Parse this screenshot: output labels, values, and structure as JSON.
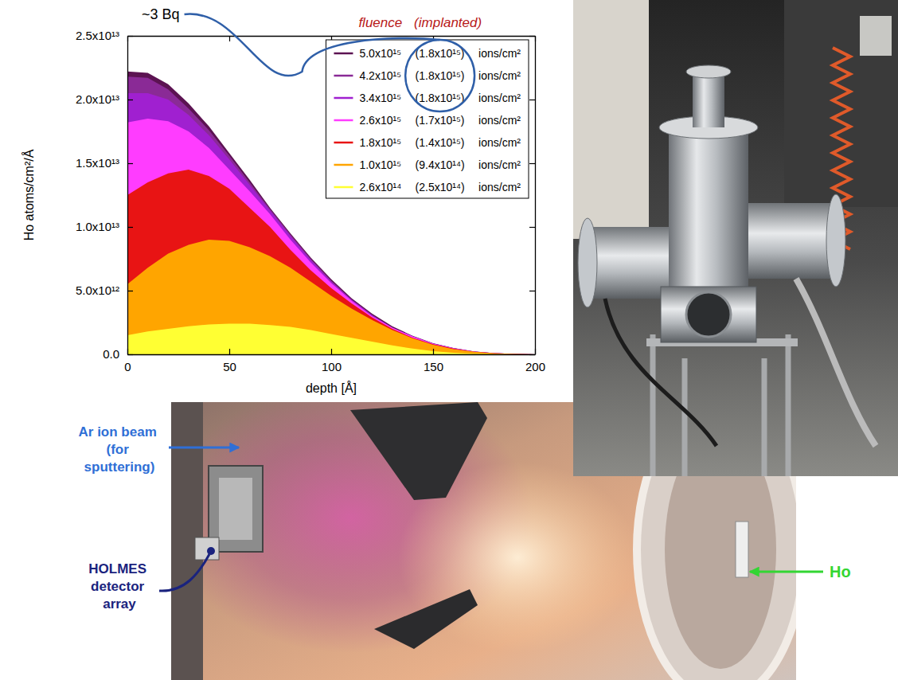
{
  "chart_data": {
    "type": "area",
    "xlabel": "depth [Å]",
    "ylabel": "Ho atoms/cm²/Å",
    "x": [
      0,
      10,
      20,
      30,
      40,
      50,
      60,
      70,
      80,
      90,
      100,
      110,
      120,
      130,
      140,
      150,
      160,
      170,
      180,
      190,
      200
    ],
    "xlim": [
      0,
      200
    ],
    "xticks": [
      0,
      50,
      100,
      150,
      200
    ],
    "ylim": [
      0,
      25000000000000.0
    ],
    "yticks": [
      {
        "value": 0,
        "label": "0.0"
      },
      {
        "value": 5000000000000.0,
        "label": "5.0x10¹²"
      },
      {
        "value": 10000000000000.0,
        "label": "1.0x10¹³"
      },
      {
        "value": 15000000000000.0,
        "label": "1.5x10¹³"
      },
      {
        "value": 20000000000000.0,
        "label": "2.0x10¹³"
      },
      {
        "value": 25000000000000.0,
        "label": "2.5x10¹³"
      }
    ],
    "legend": "upper right",
    "annotations": [
      "~3 Bq",
      "fluence",
      "(implanted)"
    ],
    "series": [
      {
        "name": "5.0x10¹⁵ (1.8x10¹⁵) ions/cm²",
        "color": "#5c1352",
        "values": [
          22200000000000.0,
          22100000000000.0,
          21200000000000.0,
          19700000000000.0,
          17900000000000.0,
          15800000000000.0,
          13700000000000.0,
          11500000000000.0,
          9500000000000.0,
          7600000000000.0,
          5900000000000.0,
          4400000000000.0,
          3200000000000.0,
          2200000000000.0,
          1450000000000.0,
          880000000000.0,
          500000000000.0,
          230000000000.0,
          100000000000.0,
          30000000000.0,
          0
        ]
      },
      {
        "name": "4.2x10¹⁵ (1.8x10¹⁵) ions/cm²",
        "color": "#8a2a96",
        "values": [
          21800000000000.0,
          21700000000000.0,
          20800000000000.0,
          19300000000000.0,
          17600000000000.0,
          15600000000000.0,
          13500000000000.0,
          11400000000000.0,
          9400000000000.0,
          7500000000000.0,
          5800000000000.0,
          4300000000000.0,
          3100000000000.0,
          2100000000000.0,
          1400000000000.0,
          850000000000.0,
          480000000000.0,
          220000000000.0,
          100000000000.0,
          30000000000.0,
          0
        ]
      },
      {
        "name": "3.4x10¹⁵ (1.8x10¹⁵) ions/cm²",
        "color": "#a020d0",
        "values": [
          20500000000000.0,
          20500000000000.0,
          20000000000000.0,
          18800000000000.0,
          17200000000000.0,
          15300000000000.0,
          13300000000000.0,
          11300000000000.0,
          9300000000000.0,
          7400000000000.0,
          5700000000000.0,
          4300000000000.0,
          3100000000000.0,
          2100000000000.0,
          1400000000000.0,
          850000000000.0,
          480000000000.0,
          220000000000.0,
          100000000000.0,
          30000000000.0,
          0
        ]
      },
      {
        "name": "2.6x10¹⁵ (1.7x10¹⁵) ions/cm²",
        "color": "#ff3cff",
        "values": [
          18200000000000.0,
          18500000000000.0,
          18300000000000.0,
          17500000000000.0,
          16200000000000.0,
          14500000000000.0,
          12800000000000.0,
          11000000000000.0,
          9000000000000.0,
          7200000000000.0,
          5600000000000.0,
          4200000000000.0,
          3000000000000.0,
          2100000000000.0,
          1400000000000.0,
          850000000000.0,
          480000000000.0,
          220000000000.0,
          100000000000.0,
          30000000000.0,
          0
        ]
      },
      {
        "name": "1.8x10¹⁵ (1.4x10¹⁵) ions/cm²",
        "color": "#e81414",
        "values": [
          12500000000000.0,
          13500000000000.0,
          14200000000000.0,
          14500000000000.0,
          14000000000000.0,
          13000000000000.0,
          11500000000000.0,
          10000000000000.0,
          8200000000000.0,
          6600000000000.0,
          5200000000000.0,
          4000000000000.0,
          2900000000000.0,
          2000000000000.0,
          1300000000000.0,
          800000000000.0,
          450000000000.0,
          200000000000.0,
          100000000000.0,
          30000000000.0,
          0
        ]
      },
      {
        "name": "1.0x10¹⁵ (9.4x10¹⁴) ions/cm²",
        "color": "#ffa500",
        "values": [
          5500000000000.0,
          6800000000000.0,
          7900000000000.0,
          8600000000000.0,
          9000000000000.0,
          8900000000000.0,
          8400000000000.0,
          7700000000000.0,
          6800000000000.0,
          5700000000000.0,
          4600000000000.0,
          3600000000000.0,
          2700000000000.0,
          1900000000000.0,
          1250000000000.0,
          750000000000.0,
          400000000000.0,
          200000000000.0,
          80000000000.0,
          30000000000.0,
          0
        ]
      },
      {
        "name": "2.6x10¹⁴ (2.5x10¹⁴) ions/cm²",
        "color": "#ffff33",
        "values": [
          1500000000000.0,
          1800000000000.0,
          2000000000000.0,
          2200000000000.0,
          2350000000000.0,
          2400000000000.0,
          2400000000000.0,
          2300000000000.0,
          2150000000000.0,
          1900000000000.0,
          1600000000000.0,
          1300000000000.0,
          1000000000000.0,
          700000000000.0,
          450000000000.0,
          250000000000.0,
          120000000000.0,
          50000000000.0,
          20000000000.0,
          0,
          0
        ]
      }
    ]
  },
  "photo_labels": {
    "beam": "Ar ion beam (for sputtering)",
    "detector": "HOLMES detector array",
    "source": "Ho"
  }
}
